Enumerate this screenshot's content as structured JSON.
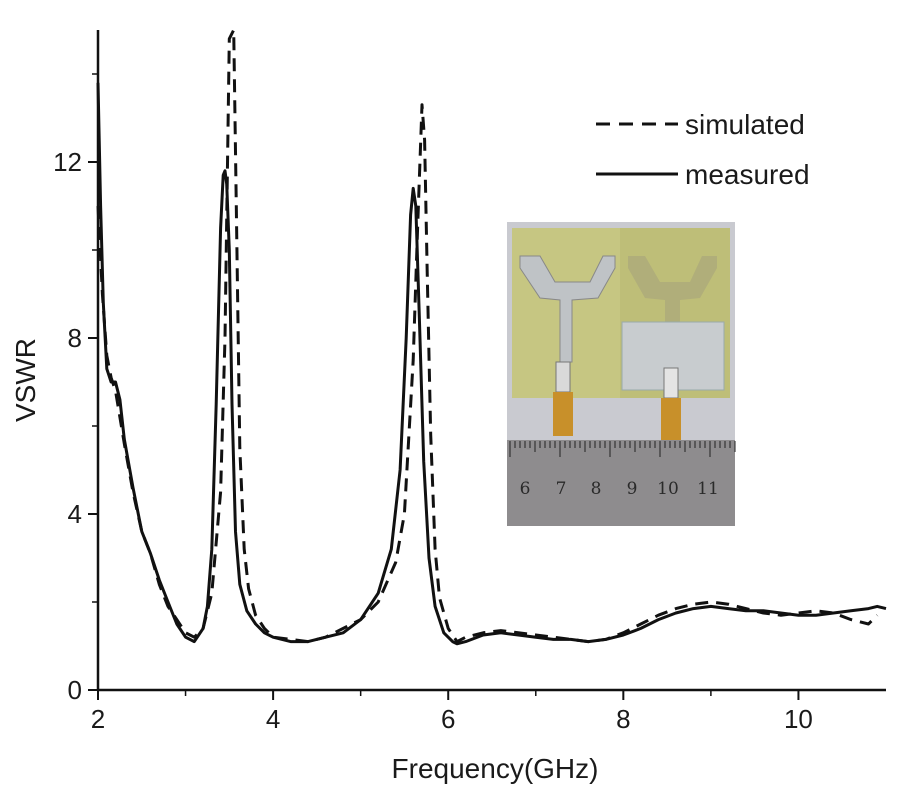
{
  "chart_data": {
    "type": "line",
    "xlabel": "Frequency(GHz)",
    "ylabel": "VSWR",
    "xlim": [
      2,
      11
    ],
    "ylim": [
      0,
      15
    ],
    "x_ticks": [
      2,
      4,
      6,
      8,
      10
    ],
    "y_ticks": [
      0,
      4,
      8,
      12
    ],
    "grid": false,
    "legend_position": "top-right",
    "series": [
      {
        "name": "simulated",
        "style": "dashed",
        "color": "#111111",
        "x": [
          2.0,
          2.05,
          2.1,
          2.15,
          2.2,
          2.3,
          2.4,
          2.5,
          2.6,
          2.7,
          2.8,
          2.9,
          3.0,
          3.1,
          3.2,
          3.3,
          3.4,
          3.45,
          3.5,
          3.55,
          3.58,
          3.62,
          3.67,
          3.72,
          3.8,
          3.9,
          4.0,
          4.2,
          4.4,
          4.6,
          4.8,
          5.0,
          5.2,
          5.4,
          5.5,
          5.6,
          5.65,
          5.7,
          5.73,
          5.76,
          5.8,
          5.85,
          5.9,
          6.0,
          6.1,
          6.2,
          6.4,
          6.6,
          6.8,
          7.0,
          7.2,
          7.4,
          7.6,
          7.8,
          8.0,
          8.2,
          8.4,
          8.6,
          8.8,
          9.0,
          9.2,
          9.4,
          9.6,
          9.8,
          10.0,
          10.2,
          10.4,
          10.6,
          10.8,
          10.9
        ],
        "y": [
          11.0,
          9.0,
          7.6,
          7.1,
          6.8,
          5.6,
          4.5,
          3.6,
          3.1,
          2.4,
          1.9,
          1.6,
          1.3,
          1.2,
          1.4,
          2.2,
          4.5,
          8.0,
          14.8,
          15.0,
          11.0,
          5.5,
          3.2,
          2.3,
          1.7,
          1.4,
          1.2,
          1.15,
          1.1,
          1.2,
          1.4,
          1.6,
          2.0,
          2.9,
          4.0,
          7.5,
          10.5,
          13.3,
          12.5,
          9.5,
          5.8,
          3.2,
          2.1,
          1.4,
          1.1,
          1.2,
          1.3,
          1.35,
          1.3,
          1.25,
          1.2,
          1.15,
          1.1,
          1.15,
          1.3,
          1.5,
          1.7,
          1.85,
          1.95,
          2.0,
          1.95,
          1.85,
          1.75,
          1.7,
          1.75,
          1.8,
          1.75,
          1.6,
          1.5,
          1.7
        ]
      },
      {
        "name": "measured",
        "style": "solid",
        "color": "#111111",
        "x": [
          2.0,
          2.03,
          2.06,
          2.1,
          2.15,
          2.2,
          2.25,
          2.3,
          2.4,
          2.5,
          2.6,
          2.7,
          2.8,
          2.9,
          3.0,
          3.1,
          3.2,
          3.25,
          3.3,
          3.35,
          3.4,
          3.43,
          3.45,
          3.47,
          3.5,
          3.53,
          3.57,
          3.62,
          3.7,
          3.8,
          3.9,
          4.0,
          4.2,
          4.4,
          4.6,
          4.8,
          5.0,
          5.2,
          5.35,
          5.45,
          5.52,
          5.57,
          5.6,
          5.63,
          5.67,
          5.72,
          5.78,
          5.85,
          5.95,
          6.05,
          6.1,
          6.2,
          6.4,
          6.6,
          6.8,
          7.0,
          7.2,
          7.4,
          7.6,
          7.8,
          8.0,
          8.2,
          8.4,
          8.6,
          8.8,
          9.0,
          9.2,
          9.4,
          9.6,
          9.8,
          10.0,
          10.2,
          10.4,
          10.6,
          10.8,
          10.9,
          11.0
        ],
        "y": [
          13.8,
          11.0,
          8.8,
          7.3,
          7.0,
          7.0,
          6.6,
          5.7,
          4.6,
          3.6,
          3.1,
          2.5,
          2.0,
          1.5,
          1.2,
          1.1,
          1.4,
          1.9,
          3.2,
          6.5,
          10.5,
          11.7,
          11.8,
          11.5,
          10.0,
          6.5,
          3.6,
          2.4,
          1.8,
          1.5,
          1.3,
          1.2,
          1.1,
          1.1,
          1.2,
          1.3,
          1.6,
          2.2,
          3.2,
          5.0,
          8.0,
          10.8,
          11.4,
          11.0,
          8.5,
          5.2,
          3.0,
          1.9,
          1.3,
          1.1,
          1.05,
          1.1,
          1.25,
          1.3,
          1.25,
          1.2,
          1.15,
          1.15,
          1.1,
          1.15,
          1.25,
          1.4,
          1.6,
          1.75,
          1.85,
          1.9,
          1.85,
          1.8,
          1.8,
          1.75,
          1.7,
          1.7,
          1.75,
          1.8,
          1.85,
          1.9,
          1.85
        ]
      }
    ],
    "inset_photo": {
      "ruler_numbers": [
        "6",
        "7",
        "8",
        "9",
        "10",
        "11"
      ]
    }
  }
}
